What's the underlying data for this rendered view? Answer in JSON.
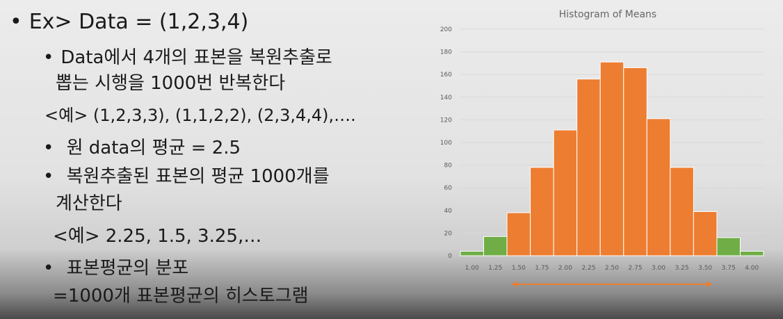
{
  "slide": {
    "lines": [
      {
        "bullet": "•",
        "text": "Ex> Data = (1,2,3,4)"
      },
      {
        "bullet": "•",
        "text": "Data에서 4개의 표본을 복원추출로"
      },
      {
        "bullet": "",
        "text": "뽑는 시행을 1000번 반복한다"
      },
      {
        "bullet": "",
        "text": "<예> (1,2,3,3), (1,1,2,2), (2,3,4,4),…."
      },
      {
        "bullet": "•",
        "text": " 원 data의 평균 = 2.5"
      },
      {
        "bullet": "•",
        "text": " 복원추출된 표본의 평균 1000개를"
      },
      {
        "bullet": "",
        "text": "계산한다"
      },
      {
        "bullet": "",
        "text": "<예> 2.25, 1.5, 3.25,…"
      },
      {
        "bullet": "•",
        "text": " 표본평균의 분포"
      },
      {
        "bullet": "",
        "text": "=1000개 표본평균의 히스토그램"
      }
    ]
  },
  "chart_data": {
    "type": "bar",
    "title": "Histogram of Means",
    "categories": [
      "1.00",
      "1.25",
      "1.50",
      "1.75",
      "2.00",
      "2.25",
      "2.50",
      "2.75",
      "3.00",
      "3.25",
      "3.50",
      "3.75",
      "4.00"
    ],
    "values": [
      4,
      17,
      38,
      78,
      111,
      156,
      171,
      166,
      121,
      78,
      39,
      16,
      4
    ],
    "bar_colors": [
      "#70ad47",
      "#70ad47",
      "#ed7d31",
      "#ed7d31",
      "#ed7d31",
      "#ed7d31",
      "#ed7d31",
      "#ed7d31",
      "#ed7d31",
      "#ed7d31",
      "#ed7d31",
      "#70ad47",
      "#70ad47"
    ],
    "ylim": [
      0,
      200
    ],
    "yticks": [
      0,
      20,
      40,
      60,
      80,
      100,
      120,
      140,
      160,
      180,
      200
    ],
    "grid": true,
    "range_arrow": {
      "from": "1.50",
      "to": "3.50",
      "color": "#ed7d31"
    }
  }
}
